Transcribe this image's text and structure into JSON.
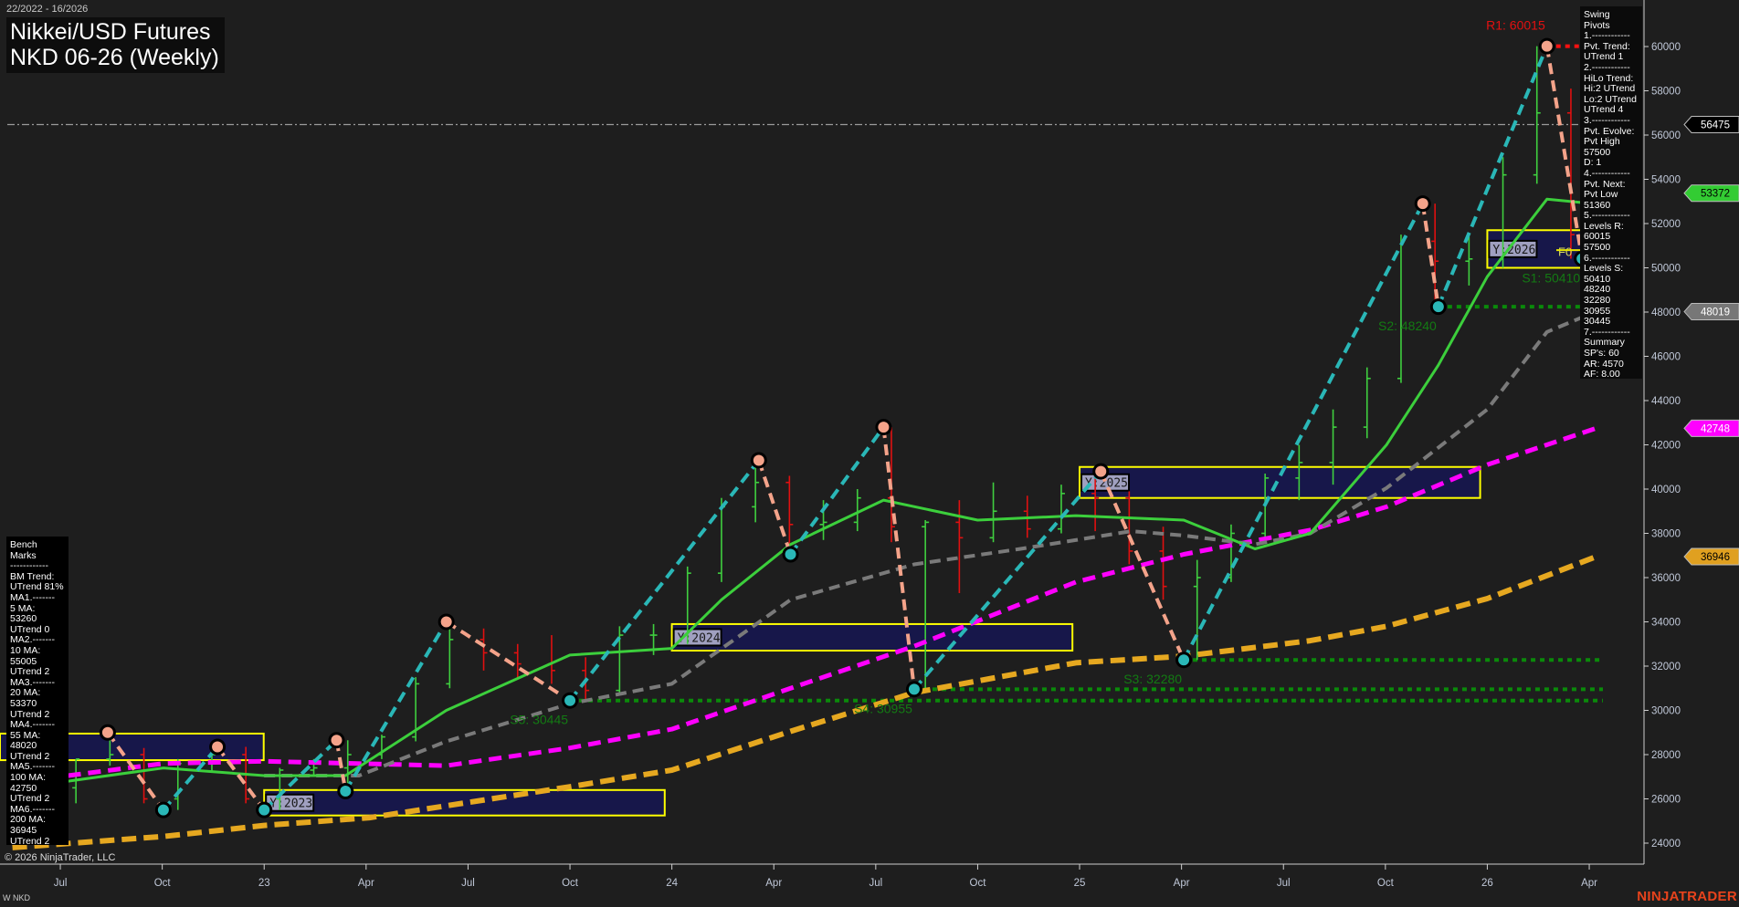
{
  "header": {
    "date_range": "22/2022 - 16/2026",
    "title_line1": "Nikkei/USD Futures",
    "title_line2": "NKD 06-26 (Weekly)"
  },
  "swing_pivots_panel": [
    "Swing Pivots",
    "1.------------",
    "Pvt. Trend:",
    "UTrend 1",
    "2.------------",
    "HiLo Trend:",
    "Hi:2 UTrend",
    "Lo:2 UTrend",
    "UTrend 4",
    "3.------------",
    "Pvt. Evolve:",
    "Pvt High",
    "57500",
    "D: 1",
    "4.------------",
    "Pvt. Next:",
    "Pvt Low",
    "51360",
    "5.------------",
    "Levels R:",
    "60015",
    "57500",
    "6.------------",
    "Levels S:",
    "50410",
    "48240",
    "32280",
    "30955",
    "30445",
    "7.------------",
    "Summary",
    "SP's: 60",
    "AR: 4570",
    "AF: 8.00"
  ],
  "bench_marks_panel": [
    "Bench Marks",
    "------------",
    "BM Trend:",
    "UTrend 81%",
    "MA1.-------",
    "5 MA:",
    "53260",
    "UTrend 0",
    "MA2.-------",
    "10 MA:",
    "55005",
    "UTrend 2",
    "MA3.-------",
    "20 MA:",
    "53370",
    "UTrend 2",
    "MA4.-------",
    "55 MA:",
    "48020",
    "UTrend 2",
    "MA5.-------",
    "100 MA:",
    "42750",
    "UTrend 2",
    "MA6.-------",
    "200 MA:",
    "36945",
    "UTrend 2"
  ],
  "footer": {
    "copyright": "© 2026 NinjaTrader, LLC",
    "instrument": "W NKD",
    "brand": "NINJATRADER"
  },
  "colors": {
    "background": "#1e1e1e",
    "up_bar": "#3fcf3f",
    "down_bar": "#e01010",
    "pivot_high": "#f4a38a",
    "pivot_low": "#2ab7b7",
    "ma_20": "#3ccf3c",
    "ma_55": "#7a7a7a",
    "ma_100": "#ff00ff",
    "ma_200": "#e6a820",
    "support": "#0a8a0a",
    "resistance": "#ff1010",
    "year_box_fill": "#16164f",
    "year_box_border": "#ffff00"
  },
  "chart_data": {
    "type": "line",
    "ylim": [
      23000,
      61500
    ],
    "y_ticks": [
      "24000",
      "26000",
      "28000",
      "30000",
      "32000",
      "34000",
      "36000",
      "38000",
      "40000",
      "42000",
      "44000",
      "46000",
      "48000",
      "50000",
      "52000",
      "54000",
      "56000",
      "58000",
      "60000"
    ],
    "x_ticks": [
      {
        "label": "Jul",
        "date": "2022-07-01"
      },
      {
        "label": "Oct",
        "date": "2022-10-01"
      },
      {
        "label": "23",
        "date": "2023-01-01"
      },
      {
        "label": "Apr",
        "date": "2023-04-01"
      },
      {
        "label": "Jul",
        "date": "2023-07-01"
      },
      {
        "label": "Oct",
        "date": "2023-10-01"
      },
      {
        "label": "24",
        "date": "2024-01-01"
      },
      {
        "label": "Apr",
        "date": "2024-04-01"
      },
      {
        "label": "Jul",
        "date": "2024-07-01"
      },
      {
        "label": "Oct",
        "date": "2024-10-01"
      },
      {
        "label": "25",
        "date": "2025-01-01"
      },
      {
        "label": "Apr",
        "date": "2025-04-01"
      },
      {
        "label": "Jul",
        "date": "2025-07-01"
      },
      {
        "label": "Oct",
        "date": "2025-10-01"
      },
      {
        "label": "26",
        "date": "2026-01-01"
      },
      {
        "label": "Apr",
        "date": "2026-04-01"
      }
    ],
    "price_bars": {
      "columns": [
        "month",
        "open",
        "high",
        "low",
        "close"
      ],
      "rows": [
        [
          "2022-07",
          26500,
          27800,
          25800,
          27800
        ],
        [
          "2022-08",
          27800,
          29000,
          27500,
          28000
        ],
        [
          "2022-09",
          28000,
          28300,
          25800,
          26000
        ],
        [
          "2022-10",
          26000,
          27800,
          25500,
          27600
        ],
        [
          "2022-11",
          27600,
          28300,
          27200,
          28000
        ],
        [
          "2022-12",
          28000,
          28350,
          25800,
          26000
        ],
        [
          "2023-01",
          26000,
          27400,
          25500,
          27300
        ],
        [
          "2023-02",
          27300,
          27800,
          27000,
          27400
        ],
        [
          "2023-03",
          27400,
          28650,
          26350,
          28000
        ],
        [
          "2023-04",
          28000,
          28900,
          27800,
          28800
        ],
        [
          "2023-05",
          28800,
          31500,
          28600,
          31200
        ],
        [
          "2023-06",
          31200,
          34000,
          31000,
          33200
        ],
        [
          "2023-07",
          33200,
          33700,
          31800,
          32600
        ],
        [
          "2023-08",
          32600,
          33000,
          31400,
          32100
        ],
        [
          "2023-09",
          32100,
          33400,
          31200,
          31800
        ],
        [
          "2023-10",
          31800,
          32400,
          30450,
          30900
        ],
        [
          "2023-11",
          30900,
          33800,
          30700,
          33400
        ],
        [
          "2023-12",
          33400,
          33900,
          32500,
          33400
        ],
        [
          "2024-01",
          33400,
          36500,
          33000,
          36200
        ],
        [
          "2024-02",
          36200,
          39600,
          35800,
          39200
        ],
        [
          "2024-03",
          39200,
          41300,
          38500,
          40300
        ],
        [
          "2024-04",
          40300,
          40600,
          37050,
          38400
        ],
        [
          "2024-05",
          38400,
          39500,
          37700,
          38500
        ],
        [
          "2024-06",
          38500,
          40000,
          38100,
          39600
        ],
        [
          "2024-07",
          39600,
          42800,
          37600,
          38300
        ],
        [
          "2024-08",
          38300,
          38600,
          30955,
          38500
        ],
        [
          "2024-09",
          38500,
          39500,
          35300,
          37800
        ],
        [
          "2024-10",
          37800,
          40300,
          37600,
          39000
        ],
        [
          "2024-11",
          39000,
          39700,
          37800,
          38200
        ],
        [
          "2024-12",
          38200,
          40200,
          38000,
          39800
        ],
        [
          "2025-01",
          39800,
          40800,
          38100,
          39600
        ],
        [
          "2025-02",
          39600,
          39900,
          36600,
          37200
        ],
        [
          "2025-03",
          37200,
          38300,
          35000,
          35600
        ],
        [
          "2025-04",
          35600,
          36800,
          32280,
          36000
        ],
        [
          "2025-05",
          36000,
          38400,
          35800,
          38000
        ],
        [
          "2025-06",
          38000,
          40700,
          37600,
          40500
        ],
        [
          "2025-07",
          40500,
          42000,
          39500,
          41200
        ],
        [
          "2025-08",
          41200,
          43600,
          40200,
          42800
        ],
        [
          "2025-09",
          42800,
          45500,
          42300,
          45000
        ],
        [
          "2025-10",
          45000,
          51500,
          44800,
          51200
        ],
        [
          "2025-11",
          51200,
          52900,
          48240,
          50300
        ],
        [
          "2025-12",
          50300,
          51400,
          49200,
          50400
        ],
        [
          "2026-01",
          50400,
          55000,
          50000,
          54200
        ],
        [
          "2026-02",
          54200,
          60015,
          53800,
          57000
        ],
        [
          "2026-03",
          57000,
          58100,
          50410,
          51500
        ],
        [
          "2026-04",
          51500,
          57500,
          51300,
          56475
        ]
      ]
    },
    "swing_pivots": [
      {
        "date": "2022-08-13",
        "price": 29000,
        "kind": "high"
      },
      {
        "date": "2022-10-02",
        "price": 25500,
        "kind": "low"
      },
      {
        "date": "2022-11-20",
        "price": 28350,
        "kind": "high"
      },
      {
        "date": "2023-01-01",
        "price": 25500,
        "kind": "low"
      },
      {
        "date": "2023-03-05",
        "price": 28650,
        "kind": "high"
      },
      {
        "date": "2023-03-13",
        "price": 26350,
        "kind": "low"
      },
      {
        "date": "2023-06-12",
        "price": 34000,
        "kind": "high"
      },
      {
        "date": "2023-10-01",
        "price": 30445,
        "kind": "low"
      },
      {
        "date": "2024-03-18",
        "price": 41300,
        "kind": "high"
      },
      {
        "date": "2024-04-16",
        "price": 37050,
        "kind": "low"
      },
      {
        "date": "2024-07-08",
        "price": 42800,
        "kind": "high"
      },
      {
        "date": "2024-08-05",
        "price": 30955,
        "kind": "low"
      },
      {
        "date": "2025-01-20",
        "price": 40800,
        "kind": "high"
      },
      {
        "date": "2025-04-03",
        "price": 32280,
        "kind": "low"
      },
      {
        "date": "2025-11-04",
        "price": 52900,
        "kind": "high"
      },
      {
        "date": "2025-11-18",
        "price": 48240,
        "kind": "low"
      },
      {
        "date": "2026-02-24",
        "price": 60015,
        "kind": "high"
      },
      {
        "date": "2026-03-25",
        "price": 50410,
        "kind": "low"
      },
      {
        "date": "2026-04-07",
        "price": 57500,
        "kind": "high"
      }
    ],
    "series": [
      {
        "key": "ma20",
        "points": [
          [
            "2022-07-08",
            26800
          ],
          [
            "2022-10-02",
            27400
          ],
          [
            "2023-01-01",
            27050
          ],
          [
            "2023-03-13",
            27050
          ],
          [
            "2023-06-12",
            30000
          ],
          [
            "2023-10-01",
            32500
          ],
          [
            "2024-01-01",
            32800
          ],
          [
            "2024-02-15",
            35000
          ],
          [
            "2024-04-16",
            37500
          ],
          [
            "2024-07-08",
            39500
          ],
          [
            "2024-10-01",
            38600
          ],
          [
            "2024-12-28",
            38800
          ],
          [
            "2025-04-03",
            38600
          ],
          [
            "2025-06-06",
            37300
          ],
          [
            "2025-07-25",
            38000
          ],
          [
            "2025-10-02",
            42000
          ],
          [
            "2025-11-18",
            45600
          ],
          [
            "2026-01-01",
            49600
          ],
          [
            "2026-02-24",
            53100
          ],
          [
            "2026-03-25",
            52950
          ],
          [
            "2026-04-07",
            53372
          ]
        ]
      },
      {
        "key": "ma55",
        "points": [
          [
            "2023-01-01",
            27050
          ],
          [
            "2023-03-25",
            27050
          ],
          [
            "2023-06-12",
            28600
          ],
          [
            "2023-10-01",
            30300
          ],
          [
            "2024-01-01",
            31200
          ],
          [
            "2024-04-16",
            35000
          ],
          [
            "2024-08-05",
            36600
          ],
          [
            "2024-11-09",
            37300
          ],
          [
            "2025-02-17",
            38100
          ],
          [
            "2025-04-03",
            37900
          ],
          [
            "2025-06-06",
            37500
          ],
          [
            "2025-07-25",
            38000
          ],
          [
            "2025-10-02",
            40050
          ],
          [
            "2026-01-01",
            43600
          ],
          [
            "2026-02-24",
            47100
          ],
          [
            "2026-04-07",
            48019
          ]
        ]
      },
      {
        "key": "ma100",
        "points": [
          [
            "2022-07-08",
            27050
          ],
          [
            "2022-10-02",
            27600
          ],
          [
            "2023-01-01",
            27700
          ],
          [
            "2023-06-12",
            27500
          ],
          [
            "2023-10-01",
            28300
          ],
          [
            "2024-01-01",
            29150
          ],
          [
            "2024-04-16",
            31000
          ],
          [
            "2024-08-05",
            32900
          ],
          [
            "2024-12-28",
            35800
          ],
          [
            "2025-04-03",
            37050
          ],
          [
            "2025-07-25",
            38150
          ],
          [
            "2025-10-02",
            39200
          ],
          [
            "2026-01-01",
            41100
          ],
          [
            "2026-04-07",
            42748
          ]
        ]
      },
      {
        "key": "ma200",
        "points": [
          [
            "2022-05-19",
            23800
          ],
          [
            "2022-10-02",
            24300
          ],
          [
            "2023-01-01",
            24800
          ],
          [
            "2023-04-04",
            25150
          ],
          [
            "2023-10-01",
            26550
          ],
          [
            "2024-01-01",
            27300
          ],
          [
            "2024-04-16",
            29050
          ],
          [
            "2024-08-05",
            30800
          ],
          [
            "2024-12-28",
            32150
          ],
          [
            "2025-04-03",
            32450
          ],
          [
            "2025-07-25",
            33150
          ],
          [
            "2025-10-02",
            33800
          ],
          [
            "2026-01-01",
            35050
          ],
          [
            "2026-04-07",
            36946
          ]
        ]
      }
    ],
    "levels": [
      {
        "label": "R1: 60015",
        "price": 60015,
        "from": "2026-02-24",
        "type": "resistance"
      },
      {
        "label": "S1: 50410",
        "price": 50410,
        "from": "2026-03-25",
        "type": "support"
      },
      {
        "label": "S2: 48240",
        "price": 48240,
        "from": "2025-11-18",
        "type": "support"
      },
      {
        "label": "S3: 32280",
        "price": 32280,
        "from": "2025-04-03",
        "type": "support"
      },
      {
        "label": "S4: 30955",
        "price": 30955,
        "from": "2024-08-05",
        "type": "support"
      },
      {
        "label": "S5: 30445",
        "price": 30445,
        "from": "2023-10-01",
        "type": "support"
      }
    ],
    "last_price_line": 56475,
    "year_boxes": [
      {
        "label": "",
        "from": "2022-05-01",
        "to": "2022-12-31",
        "high": 28950,
        "low": 27750
      },
      {
        "label": "Y:2023",
        "from": "2023-01-01",
        "to": "2023-12-25",
        "high": 26400,
        "low": 25250
      },
      {
        "label": "Y:2024",
        "from": "2024-01-01",
        "to": "2024-12-25",
        "high": 33900,
        "low": 32700
      },
      {
        "label": "Y:2025",
        "from": "2025-01-01",
        "to": "2025-12-25",
        "high": 41000,
        "low": 39600
      },
      {
        "label": "Y:2026",
        "from": "2026-01-01",
        "to": "2026-04-12",
        "high": 51700,
        "low": 50000
      }
    ],
    "annotation_f0": "F0",
    "price_flags": [
      {
        "value": "56475",
        "bg": "#000000",
        "fg": "#ffffff"
      },
      {
        "value": "53372",
        "bg": "#33cc33",
        "fg": "#000000"
      },
      {
        "value": "48019",
        "bg": "#777777",
        "fg": "#ffffff"
      },
      {
        "value": "42748",
        "bg": "#ff00ff",
        "fg": "#ffffff"
      },
      {
        "value": "36946",
        "bg": "#e0a020",
        "fg": "#000000"
      }
    ]
  }
}
